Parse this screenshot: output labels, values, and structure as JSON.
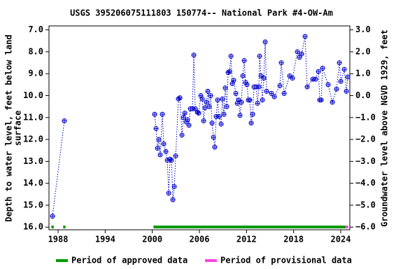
{
  "chart_data": {
    "type": "line",
    "title": "USGS 395206075111803 150774-- National Park #4-OW-Am",
    "ylabel": [
      "Depth to water level, feet below land",
      "surface"
    ],
    "y2label": "Groundwater level above NGVD 1929, feet",
    "xlim": [
      1986.84,
      2025.16
    ],
    "xticks": [
      1988,
      1994,
      2000,
      2006,
      2012,
      2018,
      2024
    ],
    "ylim": [
      16.12,
      6.82
    ],
    "yticks": [
      {
        "value": 7,
        "label": "7.0"
      },
      {
        "value": 8,
        "label": "8.0"
      },
      {
        "value": 9,
        "label": "9.0"
      },
      {
        "value": 10,
        "label": "10.0"
      },
      {
        "value": 11,
        "label": "11.0"
      },
      {
        "value": 12,
        "label": "12.0"
      },
      {
        "value": 13,
        "label": "13.0"
      },
      {
        "value": 14,
        "label": "14.0"
      },
      {
        "value": 15,
        "label": "15.0"
      },
      {
        "value": 16,
        "label": "16.0"
      }
    ],
    "y2lim": [
      -6.12,
      3.18
    ],
    "y2ticks": [
      {
        "value": 3,
        "label": "3.0"
      },
      {
        "value": 2,
        "label": "2.0"
      },
      {
        "value": 1,
        "label": "1.0"
      },
      {
        "value": 0,
        "label": "0.0"
      },
      {
        "value": -1,
        "label": "−1.0"
      },
      {
        "value": -2,
        "label": "−2.0"
      },
      {
        "value": -3,
        "label": "−3.0"
      },
      {
        "value": -4,
        "label": "−4.0"
      },
      {
        "value": -5,
        "label": "−5.0"
      },
      {
        "value": -6,
        "label": "−6.0"
      }
    ],
    "series": [
      {
        "color": "#0000cc",
        "x": [
          1987.29,
          1988.8,
          null,
          2000.3,
          2000.48,
          2000.66,
          2000.83,
          2001.01,
          2001.28,
          2001.46,
          2001.73,
          2001.91,
          2002.09,
          2002.26,
          2002.44,
          2002.62,
          2002.8,
          2002.98,
          2003.33,
          2003.51,
          2003.78,
          2003.96,
          2004.14,
          2004.31,
          2004.49,
          2004.67,
          2004.85,
          2005.11,
          2005.29,
          2005.47,
          2005.74,
          2005.91,
          2006.18,
          2006.36,
          2006.54,
          2006.72,
          2006.89,
          2007.07,
          2007.25,
          2007.43,
          2007.61,
          2007.79,
          2007.96,
          2008.14,
          2008.32,
          2008.5,
          2008.77,
          2008.94,
          2009.12,
          2009.3,
          2009.48,
          2009.66,
          2009.84,
          2010.02,
          2010.19,
          2010.37,
          2010.64,
          2010.82,
          2011.0,
          2011.17,
          2011.35,
          2011.53,
          2011.71,
          2011.89,
          2012.06,
          2012.24,
          2012.42,
          2012.6,
          2012.78,
          2012.96,
          2013.22,
          2013.4,
          2013.58,
          2013.67,
          2013.85,
          2014.02,
          2014.2,
          2014.38,
          2014.56,
          2015.18,
          2015.54,
          2016.25,
          2016.43,
          2016.79,
          2017.5,
          2017.86,
          2018.48,
          2018.75,
          2019.02,
          2019.46,
          2019.73,
          2020.44,
          2020.8,
          2021.16,
          2021.33,
          2021.51,
          2021.69,
          2022.4,
          2022.94,
          2023.47,
          2023.83,
          2024.01,
          2024.45,
          2024.72,
          2024.9
        ],
        "values": [
          15.5,
          11.15,
          null,
          10.85,
          11.5,
          12.4,
          12.0,
          12.7,
          10.85,
          12.2,
          12.55,
          12.95,
          14.45,
          12.9,
          12.95,
          14.75,
          14.15,
          12.75,
          10.15,
          10.1,
          11.8,
          11.0,
          10.8,
          11.2,
          11.1,
          11.35,
          10.6,
          10.6,
          8.15,
          10.6,
          10.75,
          10.8,
          10.0,
          10.15,
          11.15,
          10.55,
          10.3,
          9.8,
          10.5,
          10.0,
          11.25,
          11.9,
          12.35,
          10.95,
          10.2,
          10.95,
          11.3,
          10.15,
          10.85,
          9.65,
          10.5,
          8.95,
          8.9,
          8.2,
          9.45,
          9.3,
          9.9,
          10.35,
          10.2,
          10.9,
          10.3,
          9.1,
          8.4,
          9.4,
          9.5,
          10.2,
          10.2,
          11.25,
          10.85,
          9.6,
          9.6,
          10.35,
          9.6,
          8.2,
          9.1,
          10.2,
          9.2,
          7.55,
          9.8,
          9.9,
          10.05,
          9.55,
          8.5,
          9.9,
          9.1,
          9.2,
          8.0,
          8.25,
          8.1,
          7.3,
          9.6,
          9.25,
          9.25,
          8.9,
          10.2,
          10.2,
          8.75,
          9.5,
          10.3,
          9.7,
          8.5,
          9.35,
          8.8,
          9.8,
          9.15
        ]
      }
    ],
    "periods": [
      {
        "label": "Period of approved data",
        "color": "#009900",
        "ranges": [
          [
            1987.15,
            1987.45
          ],
          [
            1988.65,
            1988.95
          ],
          [
            2000.15,
            2024.6
          ]
        ]
      },
      {
        "label": "Period of provisional data",
        "color": "#ff44dd",
        "ranges": [
          [
            2024.6,
            2024.95
          ]
        ]
      }
    ]
  }
}
